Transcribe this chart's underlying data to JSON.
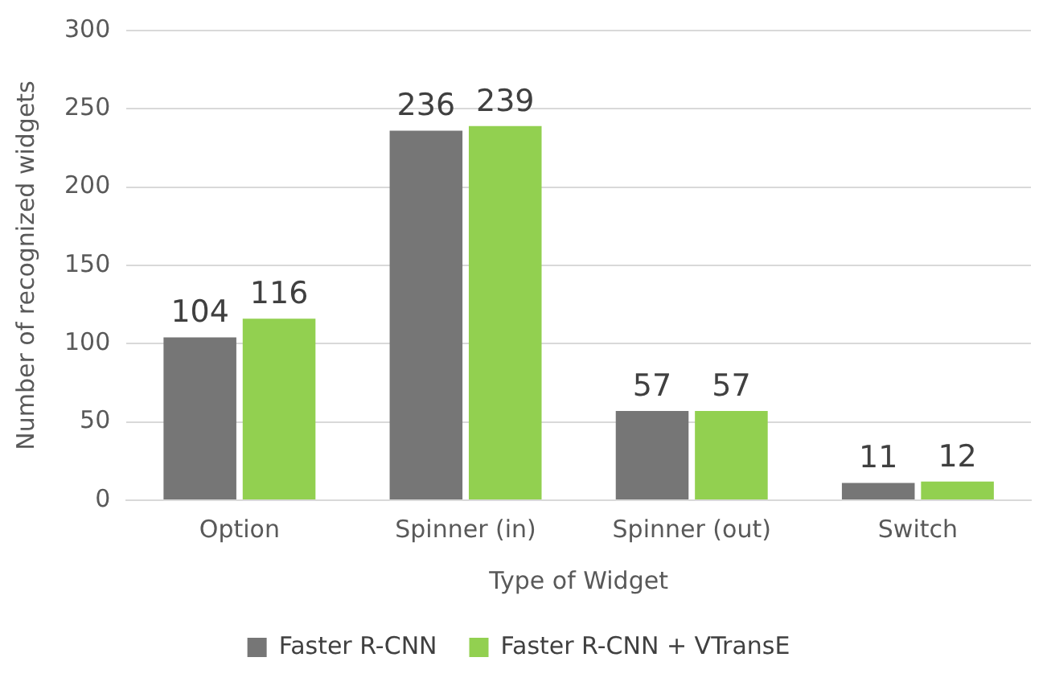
{
  "chart_data": {
    "type": "bar",
    "xlabel": "Type of Widget",
    "ylabel": "Number of recognized widgets",
    "categories": [
      "Option",
      "Spinner (in)",
      "Spinner (out)",
      "Switch"
    ],
    "series": [
      {
        "name": "Faster R-CNN",
        "color": "#767676",
        "values": [
          104,
          236,
          57,
          11
        ]
      },
      {
        "name": "Faster R-CNN + VTransE",
        "color": "#92d050",
        "values": [
          116,
          239,
          57,
          12
        ]
      }
    ],
    "ylim": [
      0,
      300
    ],
    "yticks": [
      0,
      50,
      100,
      150,
      200,
      250,
      300
    ],
    "grid": "y",
    "legend": "bottom",
    "data_labels": true
  }
}
